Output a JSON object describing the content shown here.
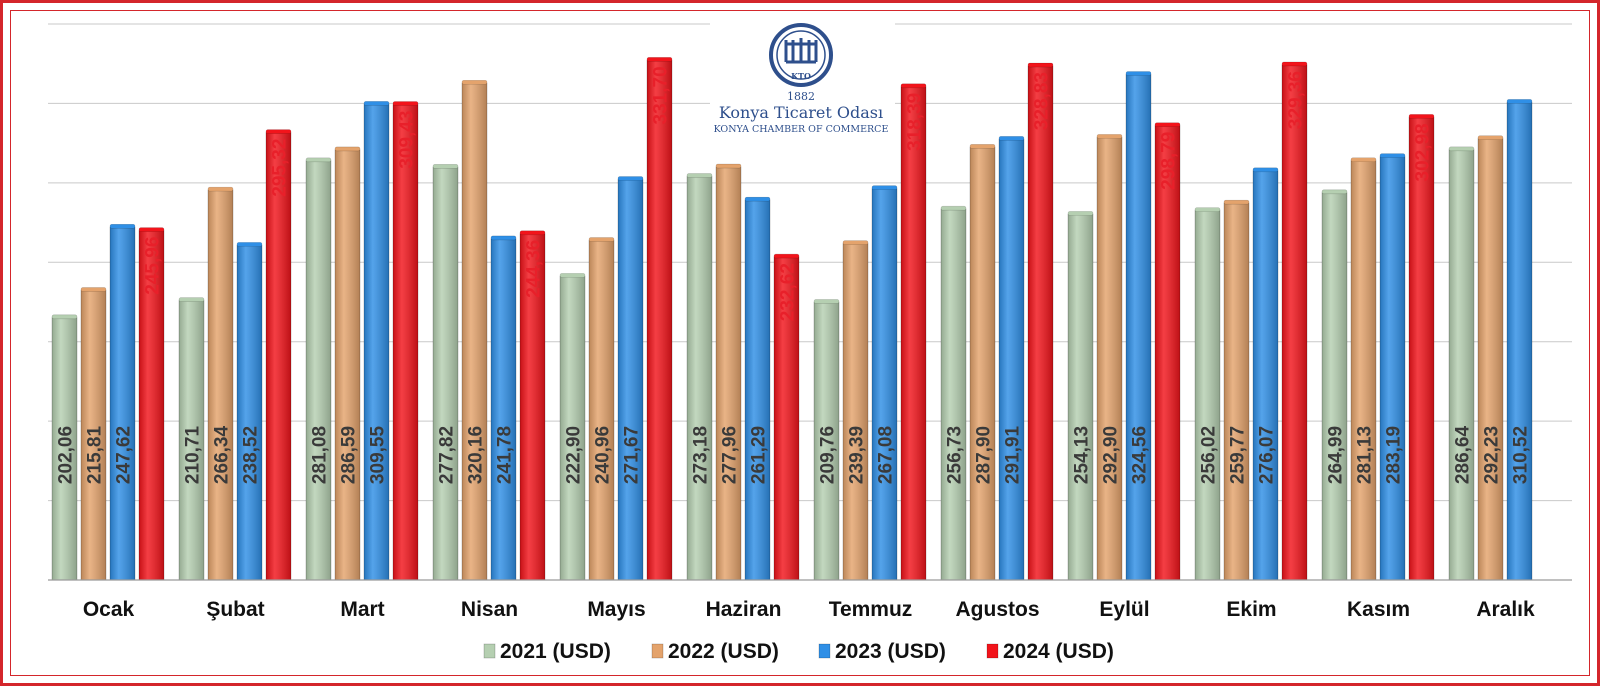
{
  "logo": {
    "year": "1882",
    "name": "Konya Ticaret Odası",
    "name_en": "KONYA CHAMBER OF COMMERCE",
    "mark": "KTO"
  },
  "colors": {
    "frame": "#d4262b",
    "grid": "#c9c9c9",
    "label_dark": "#3a3a3a",
    "label_red": "#e8202a"
  },
  "chart_data": {
    "type": "bar",
    "categories": [
      "Ocak",
      "Şubat",
      "Mart",
      "Nisan",
      "Mayıs",
      "Haziran",
      "Temmuz",
      "Agustos",
      "Eylül",
      "Ekim",
      "Kasım",
      "Aralık"
    ],
    "series": [
      {
        "name": "2021 (USD)",
        "color": "#b5cfb1",
        "values": [
          202.06,
          210.71,
          281.08,
          277.82,
          222.9,
          273.18,
          209.76,
          256.73,
          254.13,
          256.02,
          264.99,
          286.64
        ],
        "labels": [
          "202,06",
          "210,71",
          "281,08",
          "277,82",
          "222,90",
          "273,18",
          "209,76",
          "256,73",
          "254,13",
          "256,02",
          "264,99",
          "286,64"
        ]
      },
      {
        "name": "2022 (USD)",
        "color": "#e4a36c",
        "values": [
          215.81,
          266.34,
          286.59,
          320.16,
          240.96,
          277.96,
          239.39,
          287.9,
          292.9,
          259.77,
          281.13,
          292.23
        ],
        "labels": [
          "215,81",
          "266,34",
          "286,59",
          "320,16",
          "240,96",
          "277,96",
          "239,39",
          "287,90",
          "292,90",
          "259,77",
          "281,13",
          "292,23"
        ]
      },
      {
        "name": "2023 (USD)",
        "color": "#2f8fe6",
        "values": [
          247.62,
          238.52,
          309.55,
          241.78,
          271.67,
          261.29,
          267.08,
          291.91,
          324.56,
          276.07,
          283.19,
          310.52
        ],
        "labels": [
          "247,62",
          "238,52",
          "309,55",
          "241,78",
          "271,67",
          "261,29",
          "267,08",
          "291,91",
          "324,56",
          "276,07",
          "283,19",
          "310,52"
        ]
      },
      {
        "name": "2024 (USD)",
        "color": "#f2141b",
        "values": [
          245.96,
          295.32,
          309.43,
          244.36,
          331.7,
          232.62,
          318.39,
          328.83,
          298.79,
          329.36,
          302.98,
          null
        ],
        "labels": [
          "245,96",
          "295,32",
          "309,43",
          "244,36",
          "331,70",
          "232,62",
          "318,39",
          "328,83",
          "298,79",
          "329,36",
          "302,98",
          ""
        ]
      }
    ],
    "ylim": [
      70,
      350
    ],
    "grid": true,
    "legend": "bottom-center",
    "xlabel": "",
    "ylabel": ""
  }
}
